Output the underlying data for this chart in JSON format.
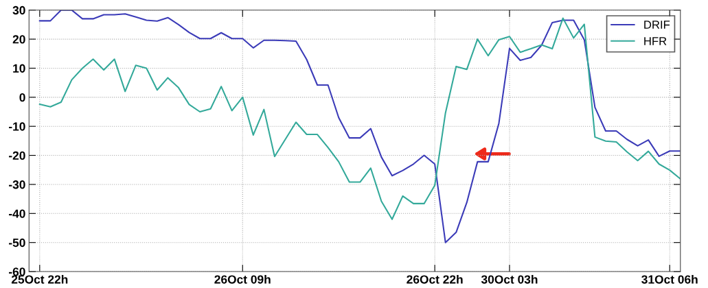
{
  "chart_data": {
    "type": "line",
    "categories": [
      "25Oct 22h",
      null,
      null,
      null,
      null,
      null,
      null,
      null,
      null,
      null,
      null,
      null,
      null,
      null,
      null,
      null,
      null,
      null,
      null,
      "26Oct 09h",
      null,
      null,
      null,
      null,
      null,
      null,
      null,
      null,
      null,
      null,
      null,
      null,
      null,
      null,
      null,
      null,
      null,
      "26Oct 22h",
      null,
      null,
      null,
      null,
      null,
      null,
      "30Oct 03h",
      null,
      null,
      null,
      null,
      null,
      null,
      null,
      null,
      null,
      null,
      null,
      null,
      null,
      null,
      "31Oct 06h",
      null
    ],
    "series": [
      {
        "name": "DRIF",
        "color": "#3b3bb8",
        "values": [
          26.3,
          26.3,
          30,
          30,
          27,
          27,
          28.4,
          28.4,
          28.7,
          27.6,
          26.5,
          26.2,
          27.4,
          25,
          22.3,
          20.2,
          20.2,
          22.2,
          20.2,
          20.2,
          17,
          19.6,
          19.6,
          19.5,
          19.3,
          13,
          4.2,
          4.2,
          -7,
          -14,
          -14,
          -10.8,
          -20.6,
          -27,
          -25.2,
          -23,
          -20,
          -23,
          -50,
          -46.5,
          -36.2,
          -22.2,
          -22.2,
          -9,
          16.8,
          12.7,
          13.7,
          17.9,
          25.7,
          26.5,
          26.5,
          19.8,
          -3.5,
          -11.6,
          -11.6,
          -14.5,
          -16.7,
          -14.7,
          -20.3,
          -18.5,
          -18.5
        ]
      },
      {
        "name": "HFR",
        "color": "#33a99a",
        "values": [
          -2.4,
          -3.3,
          -1.7,
          6,
          10,
          13.1,
          9.4,
          13.1,
          2,
          11,
          10,
          2.5,
          6.7,
          3.3,
          -2.5,
          -5,
          -4,
          3.7,
          -4.6,
          0,
          -13,
          -4.2,
          -20.4,
          -14.5,
          -8.6,
          -12.8,
          -12.8,
          -17.3,
          -22.2,
          -29.2,
          -29.2,
          -24.4,
          -35.8,
          -42,
          -34,
          -36.6,
          -36.6,
          -30.3,
          -5.4,
          10.6,
          9.6,
          20,
          14.3,
          19.8,
          20.9,
          15.5,
          16.7,
          18,
          16.7,
          27.2,
          20.4,
          25.1,
          -13.7,
          -15.1,
          -15.4,
          -18.8,
          -21.8,
          -18.6,
          -23,
          -25.1,
          -28.1
        ]
      }
    ],
    "ylim": [
      -60,
      30
    ],
    "yticks": [
      -60,
      -50,
      -40,
      -30,
      -20,
      -10,
      0,
      10,
      20,
      30
    ],
    "grid": true,
    "legend": "top right",
    "marker": "none",
    "line_style": "solid"
  }
}
